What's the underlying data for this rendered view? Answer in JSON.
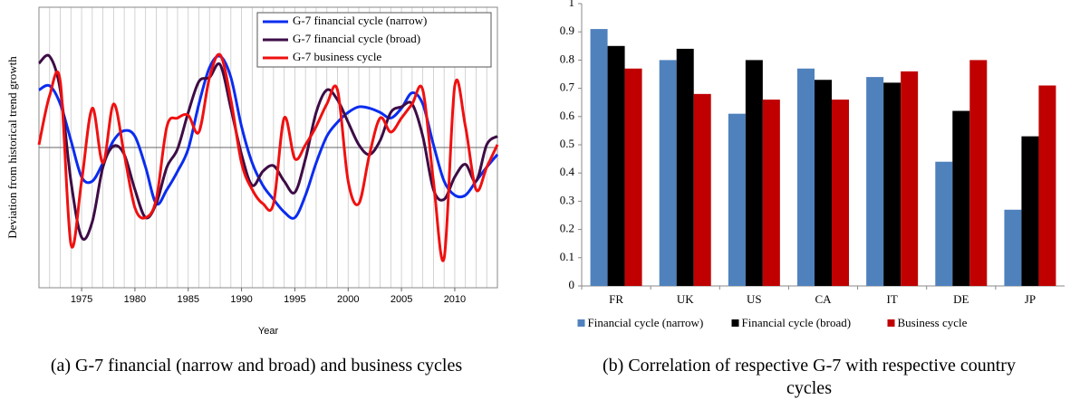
{
  "chart_data": [
    {
      "type": "line",
      "ylabel": "Deviation from historical trend growth",
      "xlabel": "Year",
      "x": [
        1971,
        1972,
        1973,
        1974,
        1975,
        1976,
        1977,
        1978,
        1979,
        1980,
        1981,
        1982,
        1983,
        1984,
        1985,
        1986,
        1987,
        1988,
        1989,
        1990,
        1991,
        1992,
        1993,
        1994,
        1995,
        1996,
        1997,
        1998,
        1999,
        2000,
        2001,
        2002,
        2003,
        2004,
        2005,
        2006,
        2007,
        2008,
        2009,
        2010,
        2011,
        2012,
        2013,
        2014
      ],
      "xlim": [
        1971,
        2014
      ],
      "xticks": [
        1975,
        1980,
        1985,
        1990,
        1995,
        2000,
        2005,
        2010
      ],
      "ylim": [
        -1,
        1
      ],
      "grid": true,
      "legend": "upper right",
      "series": [
        {
          "name": "G-7 financial cycle (narrow)",
          "color": "#0a2cf0",
          "values": [
            0.41,
            0.44,
            0.31,
            0.05,
            -0.21,
            -0.24,
            -0.11,
            0.05,
            0.12,
            0.08,
            -0.14,
            -0.4,
            -0.3,
            -0.17,
            -0.01,
            0.31,
            0.57,
            0.65,
            0.5,
            0.15,
            -0.11,
            -0.27,
            -0.37,
            -0.46,
            -0.5,
            -0.34,
            -0.11,
            0.08,
            0.18,
            0.25,
            0.29,
            0.28,
            0.25,
            0.21,
            0.28,
            0.39,
            0.31,
            0.02,
            -0.24,
            -0.34,
            -0.34,
            -0.24,
            -0.14,
            -0.05
          ]
        },
        {
          "name": "G-7 financial cycle (broad)",
          "color": "#3d0c45",
          "values": [
            0.6,
            0.65,
            0.41,
            -0.24,
            -0.64,
            -0.53,
            -0.14,
            0.01,
            -0.05,
            -0.3,
            -0.5,
            -0.4,
            -0.14,
            -0.01,
            0.25,
            0.47,
            0.5,
            0.59,
            0.28,
            -0.05,
            -0.27,
            -0.17,
            -0.13,
            -0.24,
            -0.32,
            -0.08,
            0.25,
            0.41,
            0.34,
            0.18,
            0.02,
            -0.05,
            0.05,
            0.25,
            0.29,
            0.31,
            0.08,
            -0.3,
            -0.37,
            -0.21,
            -0.12,
            -0.24,
            0.02,
            0.08
          ]
        },
        {
          "name": "G-7 business cycle",
          "color": "#f01010",
          "values": [
            0.02,
            0.37,
            0.47,
            -0.69,
            -0.24,
            0.28,
            -0.11,
            0.31,
            -0.05,
            -0.43,
            -0.5,
            -0.37,
            0.15,
            0.21,
            0.23,
            0.11,
            0.5,
            0.66,
            0.34,
            -0.11,
            -0.3,
            -0.4,
            -0.4,
            0.21,
            -0.08,
            0.02,
            0.15,
            0.31,
            0.41,
            -0.24,
            -0.4,
            -0.05,
            0.21,
            0.11,
            0.21,
            0.31,
            0.41,
            -0.24,
            -0.79,
            0.44,
            0.15,
            -0.3,
            -0.14,
            0.02
          ]
        }
      ],
      "caption": "(a) G-7 financial (narrow and broad) and business cycles"
    },
    {
      "type": "bar",
      "categories": [
        "FR",
        "UK",
        "US",
        "CA",
        "IT",
        "DE",
        "JP"
      ],
      "ylim": [
        0,
        1
      ],
      "yticks": [
        0,
        0.1,
        0.2,
        0.3,
        0.4,
        0.5,
        0.6,
        0.7,
        0.8,
        0.9,
        1
      ],
      "legend": "bottom",
      "series": [
        {
          "name": "Financial cycle (narrow)",
          "color": "#4f81bd",
          "values": [
            0.91,
            0.8,
            0.61,
            0.77,
            0.74,
            0.44,
            0.27
          ]
        },
        {
          "name": "Financial cycle (broad)",
          "color": "#000000",
          "values": [
            0.85,
            0.84,
            0.8,
            0.73,
            0.72,
            0.62,
            0.53
          ]
        },
        {
          "name": "Business cycle",
          "color": "#c00000",
          "values": [
            0.77,
            0.68,
            0.66,
            0.66,
            0.76,
            0.8,
            0.71
          ]
        }
      ],
      "caption": "(b) Correlation of respective G-7 with respective country cycles"
    }
  ]
}
